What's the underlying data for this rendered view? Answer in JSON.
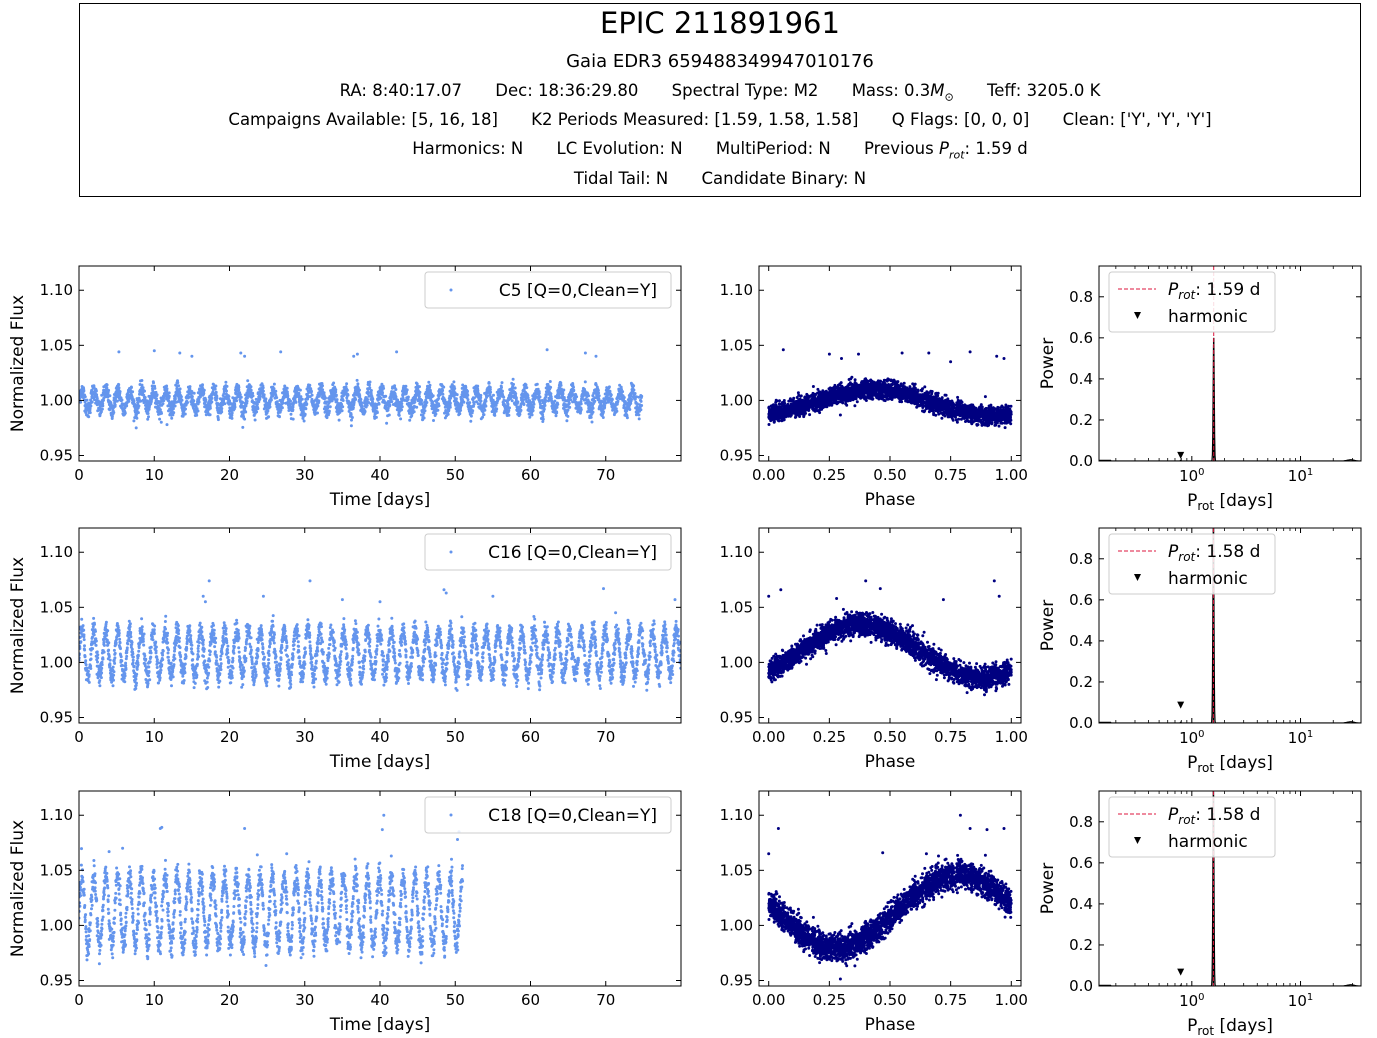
{
  "header": {
    "title": "EPIC 211891961",
    "subtitle": "Gaia EDR3 659488349947010176",
    "ra": "RA: 8:40:17.07",
    "dec": "Dec: 18:36:29.80",
    "spectral_type": "Spectral Type: M2",
    "mass_prefix": "Mass: 0.3",
    "mass_symbol": "M",
    "mass_sub": "⊙",
    "teff": "Teff: 3205.0 K",
    "campaigns": "Campaigns Available: [5, 16, 18]",
    "k2_periods": "K2 Periods Measured: [1.59, 1.58, 1.58]",
    "q_flags": "Q Flags: [0, 0, 0]",
    "clean": "Clean: ['Y', 'Y', 'Y']",
    "harmonics": "Harmonics: N",
    "lc_evolution": "LC Evolution: N",
    "multiperiod": "MultiPeriod: N",
    "previous_prefix": "Previous ",
    "previous_symbol": "P",
    "previous_sub": "rot",
    "previous_value": ": 1.59 d",
    "tidal_tail": "Tidal Tail: N",
    "candidate_binary": "Candidate Binary: N"
  },
  "colors": {
    "timeseries": "#6495ED",
    "phase": "#000080",
    "period_line": "#DC143C",
    "harmonic": "#000000"
  },
  "chart_data": [
    {
      "type": "scatter",
      "panel": "timeseries",
      "campaign": 5,
      "legend": "C5 [Q=0,Clean=Y]",
      "xlabel": "Time [days]",
      "ylabel": "Normalized Flux",
      "xlim": [
        0,
        80
      ],
      "ylim": [
        0.945,
        1.122
      ],
      "xticks": [
        0,
        10,
        20,
        30,
        40,
        50,
        60,
        70
      ],
      "yticks": [
        0.95,
        1.0,
        1.05,
        1.1
      ],
      "time_span": [
        0,
        74.8
      ],
      "period": 1.59,
      "amplitude": 0.009,
      "baseline": 1.0,
      "noise": 0.004,
      "outliers": [
        [
          5.3,
          1.044
        ],
        [
          10,
          1.045
        ],
        [
          13.4,
          1.043
        ],
        [
          15,
          1.04
        ],
        [
          21.5,
          1.043
        ],
        [
          22,
          1.04
        ],
        [
          26.8,
          1.044
        ],
        [
          36.5,
          1.04
        ],
        [
          37,
          1.042
        ],
        [
          42.2,
          1.044
        ],
        [
          62.2,
          1.046
        ],
        [
          67.3,
          1.043
        ],
        [
          68.7,
          1.04
        ],
        [
          7.6,
          0.975
        ],
        [
          11.7,
          0.978
        ],
        [
          36.2,
          0.977
        ]
      ]
    },
    {
      "type": "scatter",
      "panel": "phase",
      "campaign": 5,
      "xlabel": "Phase",
      "xlim": [
        -0.04,
        1.04
      ],
      "ylim": [
        0.945,
        1.122
      ],
      "xticks": [
        0.0,
        0.25,
        0.5,
        0.75,
        1.0
      ],
      "xticklabels": [
        "0.00",
        "0.25",
        "0.50",
        "0.75",
        "1.00"
      ],
      "yticks": [
        0.95,
        1.0,
        1.05,
        1.1
      ],
      "peak_phase": 0.43,
      "amplitude": 0.012,
      "baseline": 0.998,
      "noise": 0.004,
      "outliers": [
        [
          0.06,
          1.046
        ],
        [
          0.25,
          1.042
        ],
        [
          0.37,
          1.042
        ],
        [
          0.55,
          1.043
        ],
        [
          0.66,
          1.043
        ],
        [
          0.83,
          1.044
        ],
        [
          0.94,
          1.04
        ],
        [
          0.97,
          1.038
        ],
        [
          0.3,
          1.038
        ],
        [
          0.75,
          1.035
        ]
      ]
    },
    {
      "type": "line",
      "panel": "periodogram",
      "campaign": 5,
      "xlabel": "Prot [days]",
      "ylabel": "Power",
      "xscale": "log",
      "xlim": [
        0.14,
        36
      ],
      "ylim": [
        0,
        0.95
      ],
      "yticks": [
        0.0,
        0.2,
        0.4,
        0.6,
        0.8
      ],
      "xticks": [
        1,
        10
      ],
      "xticklabels": [
        "10^0",
        "10^1"
      ],
      "period": 1.59,
      "peak_power": 0.6,
      "legend_period": ": 1.59 d",
      "legend_harmonic": "harmonic",
      "harmonics": [
        [
          0.79,
          0.02
        ]
      ]
    },
    {
      "type": "scatter",
      "panel": "timeseries",
      "campaign": 16,
      "legend": "C16 [Q=0,Clean=Y]",
      "xlabel": "Time [days]",
      "ylabel": "Normalized Flux",
      "xlim": [
        0,
        80
      ],
      "ylim": [
        0.945,
        1.122
      ],
      "xticks": [
        0,
        10,
        20,
        30,
        40,
        50,
        60,
        70
      ],
      "yticks": [
        0.95,
        1.0,
        1.05,
        1.1
      ],
      "time_span": [
        0,
        80
      ],
      "period": 1.58,
      "amplitude": 0.021,
      "baseline": 1.008,
      "noise": 0.005,
      "outliers": [
        [
          17.3,
          1.074
        ],
        [
          30.7,
          1.074
        ],
        [
          48.5,
          1.066
        ],
        [
          48.8,
          1.063
        ],
        [
          69.7,
          1.067
        ],
        [
          79.2,
          1.057
        ],
        [
          16.5,
          1.06
        ],
        [
          24.5,
          1.06
        ],
        [
          16.8,
          1.055
        ],
        [
          35,
          1.057
        ],
        [
          40,
          1.055
        ],
        [
          55,
          1.06
        ]
      ]
    },
    {
      "type": "scatter",
      "panel": "phase",
      "campaign": 16,
      "xlabel": "Phase",
      "xlim": [
        -0.04,
        1.04
      ],
      "ylim": [
        0.945,
        1.122
      ],
      "xticks": [
        0.0,
        0.25,
        0.5,
        0.75,
        1.0
      ],
      "xticklabels": [
        "0.00",
        "0.25",
        "0.50",
        "0.75",
        "1.00"
      ],
      "yticks": [
        0.95,
        1.0,
        1.05,
        1.1
      ],
      "peak_phase": 0.38,
      "amplitude": 0.024,
      "baseline": 1.01,
      "noise": 0.005,
      "outliers": [
        [
          0.05,
          1.066
        ],
        [
          0.0,
          1.06
        ],
        [
          0.4,
          1.074
        ],
        [
          0.46,
          1.067
        ],
        [
          0.93,
          1.074
        ],
        [
          0.72,
          1.057
        ],
        [
          0.95,
          1.06
        ],
        [
          0.28,
          1.058
        ]
      ]
    },
    {
      "type": "line",
      "panel": "periodogram",
      "campaign": 16,
      "xlabel": "Prot [days]",
      "ylabel": "Power",
      "xscale": "log",
      "xlim": [
        0.14,
        36
      ],
      "ylim": [
        0,
        0.95
      ],
      "yticks": [
        0.0,
        0.2,
        0.4,
        0.6,
        0.8
      ],
      "xticks": [
        1,
        10
      ],
      "xticklabels": [
        "10^0",
        "10^1"
      ],
      "period": 1.58,
      "peak_power": 0.97,
      "legend_period": ": 1.58 d",
      "legend_harmonic": "harmonic",
      "harmonics": [
        [
          0.79,
          0.08
        ]
      ]
    },
    {
      "type": "scatter",
      "panel": "timeseries",
      "campaign": 18,
      "legend": "C18 [Q=0,Clean=Y]",
      "xlabel": "Time [days]",
      "ylabel": "Normalized Flux",
      "xlim": [
        0,
        80
      ],
      "ylim": [
        0.945,
        1.122
      ],
      "xticks": [
        0,
        10,
        20,
        30,
        40,
        50,
        60,
        70
      ],
      "yticks": [
        0.95,
        1.0,
        1.05,
        1.1
      ],
      "time_span": [
        0,
        51
      ],
      "period": 1.58,
      "amplitude": 0.032,
      "baseline": 1.013,
      "noise": 0.006,
      "outliers": [
        [
          10.8,
          1.088
        ],
        [
          11,
          1.089
        ],
        [
          22,
          1.088
        ],
        [
          40.5,
          1.1
        ],
        [
          40.3,
          1.087
        ],
        [
          50.5,
          1.085
        ],
        [
          50.3,
          1.078
        ],
        [
          4,
          1.067
        ],
        [
          5.8,
          1.07
        ],
        [
          41.5,
          1.063
        ],
        [
          23.7,
          1.064
        ],
        [
          27.6,
          1.065
        ],
        [
          49.5,
          1.06
        ]
      ]
    },
    {
      "type": "scatter",
      "panel": "phase",
      "campaign": 18,
      "xlabel": "Phase",
      "xlim": [
        -0.04,
        1.04
      ],
      "ylim": [
        0.945,
        1.122
      ],
      "xticks": [
        0.0,
        0.25,
        0.5,
        0.75,
        1.0
      ],
      "xticklabels": [
        "0.00",
        "0.25",
        "0.50",
        "0.75",
        "1.00"
      ],
      "yticks": [
        0.95,
        1.0,
        1.05,
        1.1
      ],
      "peak_phase": 0.78,
      "amplitude": 0.033,
      "baseline": 1.013,
      "noise": 0.006,
      "outliers": [
        [
          0.04,
          1.088
        ],
        [
          0.79,
          1.1
        ],
        [
          0.83,
          1.088
        ],
        [
          0.9,
          1.087
        ],
        [
          0.97,
          1.088
        ],
        [
          0.0,
          1.065
        ],
        [
          0.47,
          1.066
        ],
        [
          0.7,
          1.063
        ],
        [
          0.65,
          1.065
        ]
      ]
    },
    {
      "type": "line",
      "panel": "periodogram",
      "campaign": 18,
      "xlabel": "Prot [days]",
      "ylabel": "Power",
      "xscale": "log",
      "xlim": [
        0.14,
        36
      ],
      "ylim": [
        0,
        0.95
      ],
      "yticks": [
        0.0,
        0.2,
        0.4,
        0.6,
        0.8
      ],
      "xticks": [
        1,
        10
      ],
      "xticklabels": [
        "10^0",
        "10^1"
      ],
      "period": 1.58,
      "peak_power": 0.95,
      "legend_period": ": 1.58 d",
      "legend_harmonic": "harmonic",
      "harmonics": [
        [
          0.79,
          0.06
        ]
      ]
    }
  ]
}
